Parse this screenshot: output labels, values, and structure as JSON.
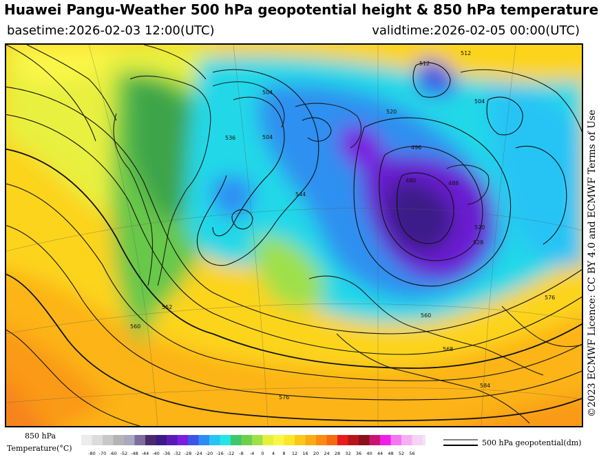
{
  "header": {
    "title": "Huawei Pangu-Weather 500 hPa geopotential height & 850 hPa temperature",
    "basetime": "basetime:2026-02-03 12:00(UTC)",
    "validtime": "validtime:2026-02-05 00:00(UTC)"
  },
  "credit": "©2023 ECMWF Licence: CC BY 4.0 and ECMWF Terms of Use",
  "legend": {
    "temp_label_line1": "850 hPa",
    "temp_label_line2": "Temperature(°C)",
    "temp_ticks": [
      "-80",
      "-70",
      "-60",
      "-52",
      "-48",
      "-44",
      "-40",
      "-36",
      "-32",
      "-28",
      "-24",
      "-20",
      "-16",
      "-12",
      "-8",
      "-4",
      "0",
      "4",
      "8",
      "12",
      "16",
      "20",
      "24",
      "28",
      "32",
      "36",
      "40",
      "44",
      "48",
      "52",
      "56"
    ],
    "temp_colors": [
      "#ececec",
      "#dcdcdc",
      "#c8c8c8",
      "#b4b4b4",
      "#a8a8c0",
      "#7d6d9d",
      "#4b2a6e",
      "#3b1a86",
      "#5a1ab8",
      "#7a1ee0",
      "#3b56e6",
      "#2e8cf5",
      "#28c4f5",
      "#24e6e6",
      "#3ec86e",
      "#6ed04a",
      "#9ee048",
      "#e6f03c",
      "#faf646",
      "#fce628",
      "#fcc818",
      "#fcaa12",
      "#fa8a10",
      "#f46a10",
      "#e81c1c",
      "#b81418",
      "#8a101e",
      "#c8146e",
      "#f01ee6",
      "#f676f0",
      "#f8aef4",
      "#f8d2f6",
      "#f0e6f0"
    ],
    "geo_label": "500 hPa geopotential(dm)"
  },
  "map": {
    "contour_labels": [
      {
        "label": "504"
      },
      {
        "label": "504"
      },
      {
        "label": "504"
      },
      {
        "label": "512"
      },
      {
        "label": "512"
      },
      {
        "label": "520"
      },
      {
        "label": "520"
      },
      {
        "label": "528"
      },
      {
        "label": "536"
      },
      {
        "label": "544"
      },
      {
        "label": "552"
      },
      {
        "label": "560"
      },
      {
        "label": "560"
      },
      {
        "label": "568"
      },
      {
        "label": "576"
      },
      {
        "label": "576"
      },
      {
        "label": "584"
      },
      {
        "label": "496"
      },
      {
        "label": "488"
      },
      {
        "label": "480"
      }
    ]
  }
}
